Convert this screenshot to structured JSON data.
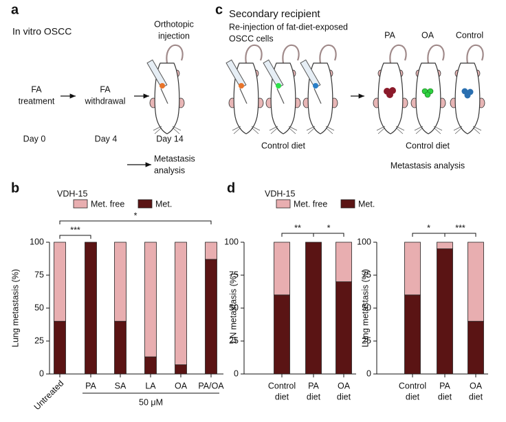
{
  "panel_a": {
    "letter": "a",
    "title": "In vitro OSCC",
    "injection": [
      "Orthotopic",
      "injection"
    ],
    "steps": [
      [
        "FA",
        "treatment"
      ],
      [
        "FA",
        "withdrawal"
      ]
    ],
    "days": [
      "Day 0",
      "Day 4",
      "Day 14"
    ],
    "analysis": [
      "Metastasis",
      "analysis"
    ]
  },
  "panel_c": {
    "letter": "c",
    "title": "Secondary recipient",
    "subtitle": [
      "Re-injection of fat-diet-exposed",
      "OSCC cells"
    ],
    "groups": [
      "PA",
      "OA",
      "Control"
    ],
    "diet_labels": [
      "Control diet",
      "Control diet"
    ],
    "analysis": "Metastasis analysis"
  },
  "panel_b_letter": "b",
  "panel_d_letter": "d",
  "chart_data": [
    {
      "type": "bar",
      "stacked": true,
      "title": "VDH-15",
      "ylabel": "Lung metastasis (%)",
      "categories": [
        "Untreated",
        "PA",
        "SA",
        "LA",
        "OA",
        "PA/OA"
      ],
      "series": [
        {
          "name": "Met. free",
          "color": "#e8aeb0",
          "values": [
            60,
            0,
            60,
            87,
            93,
            13
          ]
        },
        {
          "name": "Met.",
          "color": "#5a1414",
          "values": [
            40,
            100,
            40,
            13,
            7,
            87
          ]
        }
      ],
      "ylim": [
        0,
        100
      ],
      "yticks": [
        0,
        25,
        50,
        75,
        100
      ],
      "group": {
        "label": "50 μM",
        "from": 1,
        "to": 5
      },
      "significance": [
        {
          "from": 0,
          "to": 1,
          "label": "***"
        },
        {
          "from": 0,
          "to": 5,
          "label": "*"
        }
      ]
    },
    {
      "type": "bar",
      "stacked": true,
      "title": "VDH-15",
      "ylabel": "LN metastasis (%)",
      "categories": [
        [
          "Control",
          "diet"
        ],
        [
          "PA",
          "diet"
        ],
        [
          "OA",
          "diet"
        ]
      ],
      "series": [
        {
          "name": "Met. free",
          "color": "#e8aeb0",
          "values": [
            40,
            0,
            30
          ]
        },
        {
          "name": "Met.",
          "color": "#5a1414",
          "values": [
            60,
            100,
            70
          ]
        }
      ],
      "ylim": [
        0,
        100
      ],
      "yticks": [
        0,
        25,
        50,
        75,
        100
      ],
      "significance": [
        {
          "from": 0,
          "to": 1,
          "label": "**"
        },
        {
          "from": 1,
          "to": 2,
          "label": "*"
        }
      ]
    },
    {
      "type": "bar",
      "stacked": true,
      "ylabel": "Lung metastasis (%)",
      "categories": [
        [
          "Control",
          "diet"
        ],
        [
          "PA",
          "diet"
        ],
        [
          "OA",
          "diet"
        ]
      ],
      "series": [
        {
          "name": "Met. free",
          "color": "#e8aeb0",
          "values": [
            40,
            5,
            60
          ]
        },
        {
          "name": "Met.",
          "color": "#5a1414",
          "values": [
            60,
            95,
            40
          ]
        }
      ],
      "ylim": [
        0,
        100
      ],
      "yticks": [
        0,
        25,
        50,
        75,
        100
      ],
      "significance": [
        {
          "from": 0,
          "to": 1,
          "label": "*"
        },
        {
          "from": 1,
          "to": 2,
          "label": "***"
        }
      ]
    }
  ]
}
